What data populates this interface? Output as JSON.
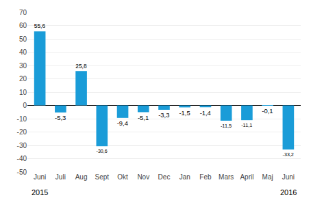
{
  "chart_data": {
    "type": "bar",
    "categories": [
      "Juni",
      "Juli",
      "Aug",
      "Sept",
      "Okt",
      "Nov",
      "Dec",
      "Jan",
      "Feb",
      "Mars",
      "April",
      "Maj",
      "Juni"
    ],
    "values": [
      55.6,
      -5.3,
      25.8,
      -30.6,
      -9.4,
      -5.1,
      -3.3,
      -1.5,
      -1.4,
      -11.5,
      -11.1,
      -0.1,
      -33.2
    ],
    "value_labels": [
      "55,6",
      "-5,3",
      "25,8",
      "-30,6",
      "-9,4",
      "-5,1",
      "-3,3",
      "-1,5",
      "-1,4",
      "-11,5",
      "-11,1",
      "-0,1",
      "-33,2"
    ],
    "data_labels": true,
    "color": "#1a9cd8",
    "ylim": [
      -50,
      70
    ],
    "yticks": [
      -50,
      -40,
      -30,
      -20,
      -10,
      0,
      10,
      20,
      30,
      40,
      50,
      60,
      70
    ],
    "grid": true,
    "annotations": [
      {
        "text": "2015",
        "x": 0
      },
      {
        "text": "2016",
        "x": 12
      }
    ]
  }
}
